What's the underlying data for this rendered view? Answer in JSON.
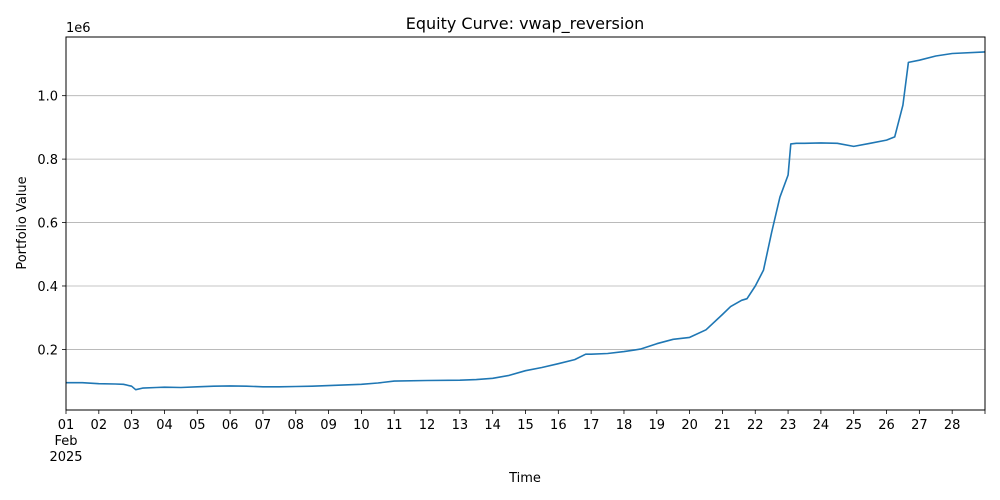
{
  "chart_data": {
    "type": "line",
    "title": "Equity Curve: vwap_reversion",
    "xlabel": "Time",
    "ylabel": "Portfolio Value",
    "y_offset_label": "1e6",
    "xlim": [
      "2025-02-01",
      "2025-03-01"
    ],
    "ylim": [
      9000,
      1185000
    ],
    "x_tick_labels": [
      "01",
      "02",
      "03",
      "04",
      "05",
      "06",
      "07",
      "08",
      "09",
      "10",
      "11",
      "12",
      "13",
      "14",
      "15",
      "16",
      "17",
      "18",
      "19",
      "20",
      "21",
      "22",
      "23",
      "24",
      "25",
      "26",
      "27",
      "28"
    ],
    "x_month_label": "Feb",
    "x_year_label": "2025",
    "y_ticks": [
      200000,
      400000,
      600000,
      800000,
      1000000
    ],
    "y_tick_labels": [
      "0.2",
      "0.4",
      "0.6",
      "0.8",
      "1.0"
    ],
    "grid": "y",
    "line_color": "#1f77b4",
    "series": [
      {
        "x": [
          "2025-02-01",
          "2025-02-01 12:00",
          "2025-02-02",
          "2025-02-02 12:00",
          "2025-02-02 18:00",
          "2025-02-03",
          "2025-02-03 03:00",
          "2025-02-03 08:00",
          "2025-02-03 18:00",
          "2025-02-04",
          "2025-02-04 12:00",
          "2025-02-05",
          "2025-02-05 12:00",
          "2025-02-06",
          "2025-02-06 12:00",
          "2025-02-07",
          "2025-02-07 12:00",
          "2025-02-08",
          "2025-02-08 12:00",
          "2025-02-09",
          "2025-02-10",
          "2025-02-10 12:00",
          "2025-02-11",
          "2025-02-12",
          "2025-02-13",
          "2025-02-13 12:00",
          "2025-02-14",
          "2025-02-14 12:00",
          "2025-02-15",
          "2025-02-15 12:00",
          "2025-02-16",
          "2025-02-16 12:00",
          "2025-02-16 20:00",
          "2025-02-17",
          "2025-02-17 12:00",
          "2025-02-18",
          "2025-02-18 12:00",
          "2025-02-19",
          "2025-02-19 12:00",
          "2025-02-20",
          "2025-02-20 12:00",
          "2025-02-21",
          "2025-02-21 06:00",
          "2025-02-21 14:00",
          "2025-02-21 18:00",
          "2025-02-22",
          "2025-02-22 06:00",
          "2025-02-22 12:00",
          "2025-02-22 18:00",
          "2025-02-23",
          "2025-02-23 02:00",
          "2025-02-23 06:00",
          "2025-02-23 12:00",
          "2025-02-24",
          "2025-02-24 12:00",
          "2025-02-25",
          "2025-02-25 12:00",
          "2025-02-26",
          "2025-02-26 06:00",
          "2025-02-26 12:00",
          "2025-02-26 16:00",
          "2025-02-27",
          "2025-02-27 12:00",
          "2025-02-28",
          "2025-03-01"
        ],
        "y": [
          95000,
          95000,
          92000,
          91000,
          90000,
          84000,
          73000,
          78000,
          80000,
          81000,
          80000,
          82000,
          84000,
          85000,
          84000,
          82000,
          82000,
          83000,
          84000,
          86000,
          90000,
          94000,
          100000,
          102000,
          103000,
          105000,
          109000,
          118000,
          133000,
          143000,
          155000,
          168000,
          185000,
          185000,
          187000,
          193000,
          201000,
          218000,
          232000,
          238000,
          262000,
          310000,
          335000,
          355000,
          360000,
          400000,
          450000,
          570000,
          680000,
          750000,
          848000,
          850000,
          850000,
          851000,
          850000,
          840000,
          850000,
          860000,
          870000,
          970000,
          1105000,
          1112000,
          1125000,
          1133000,
          1138000
        ]
      }
    ]
  }
}
